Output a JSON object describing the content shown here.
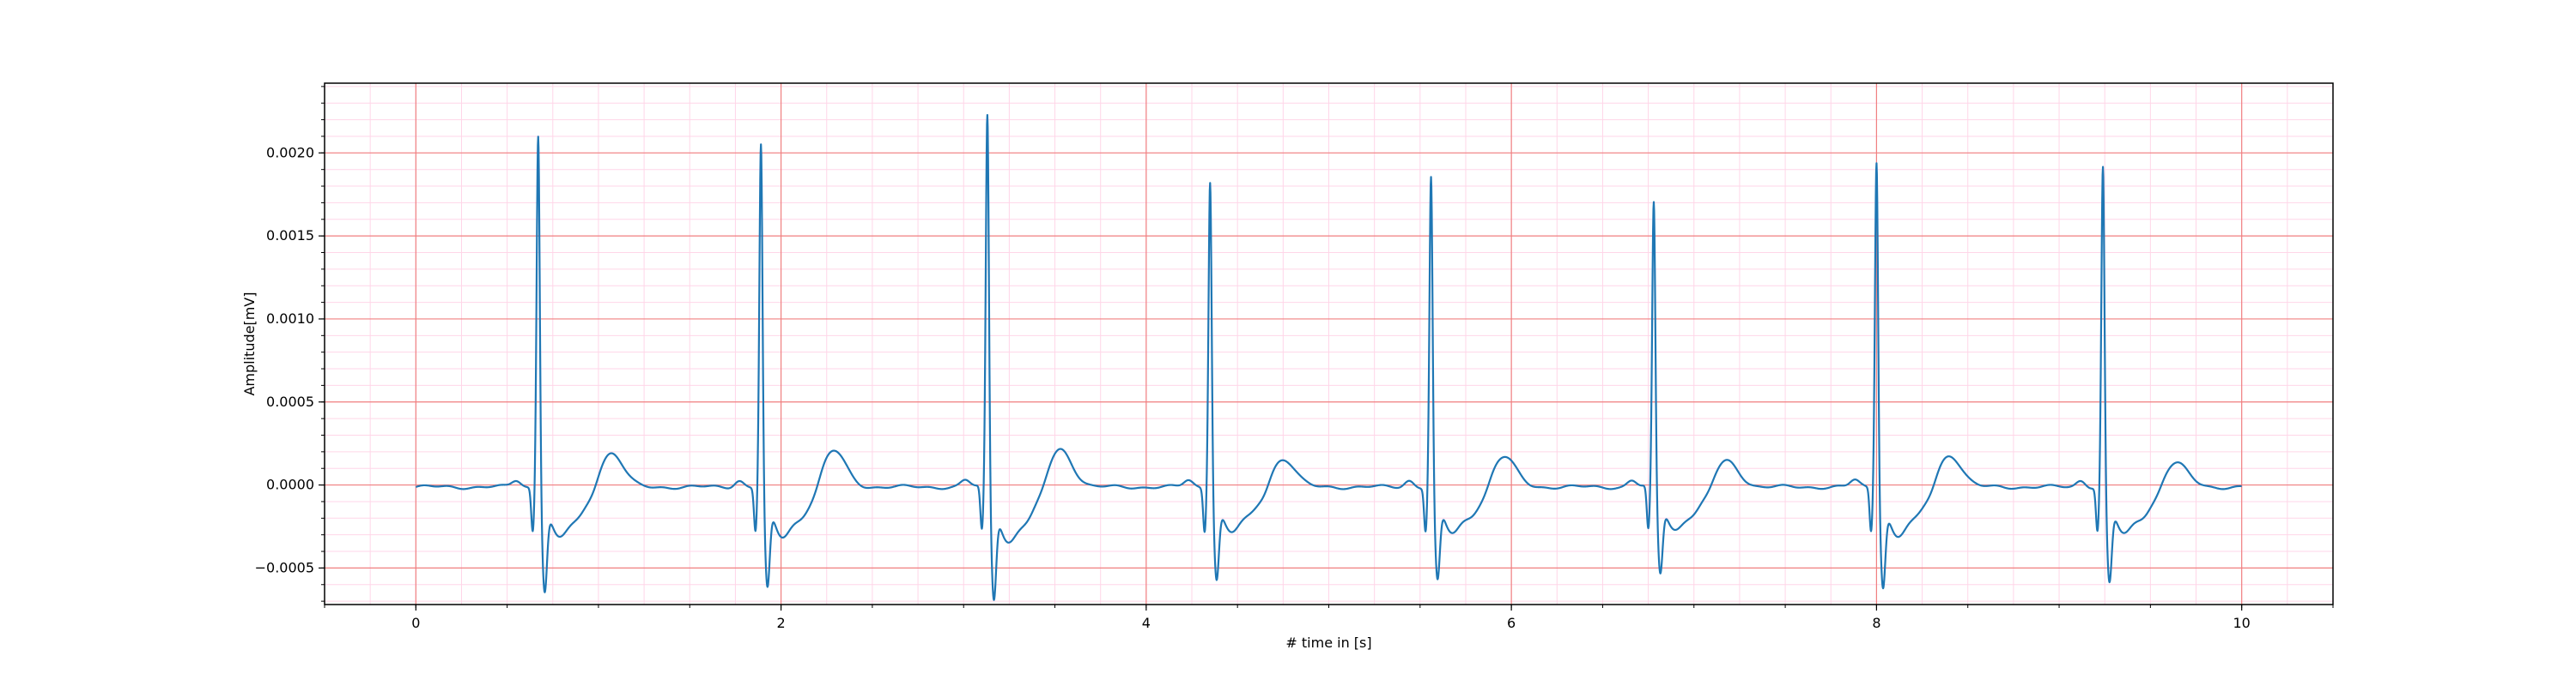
{
  "chart_data": {
    "type": "line",
    "title": "",
    "xlabel": "# time in [s]",
    "ylabel": "Amplitude[mV]",
    "xlim": [
      -0.5,
      10.5
    ],
    "ylim": [
      -0.00072,
      0.00242
    ],
    "x_ticks": [
      0,
      2,
      4,
      6,
      8,
      10
    ],
    "x_tick_labels": [
      "0",
      "2",
      "4",
      "6",
      "8",
      "10"
    ],
    "y_ticks": [
      -0.0005,
      0.0,
      0.0005,
      0.001,
      0.0015,
      0.002
    ],
    "y_tick_labels": [
      "−0.0005",
      "0.0000",
      "0.0005",
      "0.0010",
      "0.0015",
      "0.0020"
    ],
    "grid": {
      "major": true,
      "minor": true,
      "major_color": "#f08080",
      "minor_color": "#ffd6e8"
    },
    "line_color": "#1f77b4",
    "series": [
      {
        "beat_times": [
          0.67,
          1.89,
          3.13,
          4.35,
          5.56,
          6.78,
          8.0,
          9.24
        ],
        "r_peaks": [
          0.00216,
          0.0021,
          0.00228,
          0.00188,
          0.0019,
          0.00174,
          0.002,
          0.00196
        ],
        "s_troughs": [
          -0.00053,
          -0.00052,
          -0.00057,
          -0.00047,
          -0.00048,
          -0.00044,
          -0.00051,
          -0.00049
        ],
        "t_peaks": [
          0.00017,
          0.00018,
          0.00019,
          0.00014,
          0.00015,
          0.00013,
          0.00016,
          0.00012
        ],
        "x_end": 10.0
      }
    ]
  }
}
